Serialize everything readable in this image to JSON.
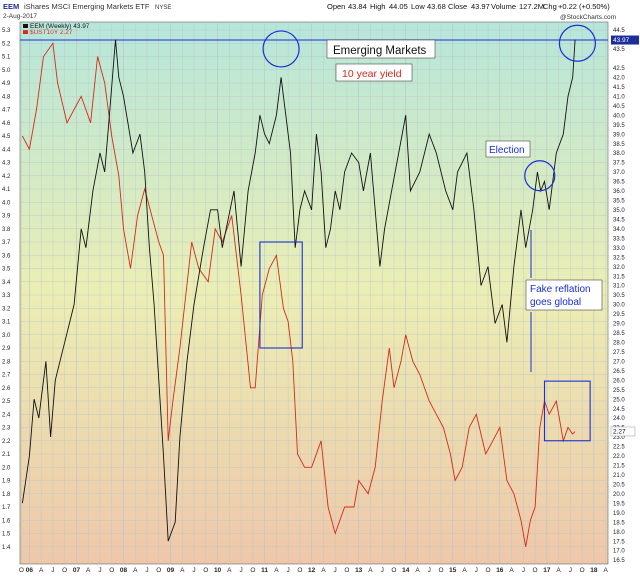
{
  "header": {
    "symbol": "EEM",
    "description": "iShares MSCI Emerging Markets ETF",
    "exchange": "NYSE",
    "date": "2-Aug-2017",
    "open_label": "Open",
    "open_value": "43.84",
    "high_label": "High",
    "high_value": "44.05",
    "low_label": "Low",
    "low_value": "43.68",
    "close_label": "Close",
    "close_value": "43.97",
    "volume_label": "Volume",
    "volume_value": "127.2M",
    "chg_label": "Chg",
    "chg_value": "+0.22 (+0.50%)",
    "watermark": "@StockCharts.com"
  },
  "legend": {
    "eem": "EEM (Weekly) 43.97",
    "ust": "$UST10Y 2.27"
  },
  "annotations": {
    "title": "Emerging Markets",
    "yield": "10 year yield",
    "election": "Election",
    "reflation_line1": "Fake reflation",
    "reflation_line2": "goes global"
  },
  "colors": {
    "eem": "#111111",
    "ust": "#d42a1a",
    "annotation": "#1a2fd6",
    "grid": "#b9c3c9",
    "bg_top": "#b6e6da",
    "bg_mid": "#ebeeb4",
    "bg_bottom": "#eec7aa"
  },
  "chart_data": {
    "type": "line",
    "x_range": [
      2005.8,
      2018.3
    ],
    "ylim_left": [
      1.3,
      5.3
    ],
    "ylim_right": [
      16.5,
      44.5
    ],
    "left_ticks": [
      "5.3",
      "5.2",
      "5.1",
      "5.0",
      "4.9",
      "4.8",
      "4.7",
      "4.6",
      "4.5",
      "4.4",
      "4.3",
      "4.2",
      "4.1",
      "4.0",
      "3.9",
      "3.8",
      "3.7",
      "3.6",
      "3.5",
      "3.4",
      "3.3",
      "3.2",
      "3.1",
      "3.0",
      "2.9",
      "2.8",
      "2.7",
      "2.6",
      "2.5",
      "2.4",
      "2.3",
      "2.2",
      "2.1",
      "2.0",
      "1.9",
      "1.8",
      "1.7",
      "1.6",
      "1.5",
      "1.4"
    ],
    "right_ticks": [
      "44.5",
      "44.0",
      "43.5",
      "42.5",
      "42.0",
      "41.5",
      "41.0",
      "40.5",
      "40.0",
      "39.5",
      "39.0",
      "38.5",
      "38.0",
      "37.5",
      "37.0",
      "36.5",
      "36.0",
      "35.5",
      "35.0",
      "34.5",
      "34.0",
      "33.5",
      "33.0",
      "32.5",
      "32.0",
      "31.5",
      "31.0",
      "30.5",
      "30.0",
      "29.5",
      "29.0",
      "28.5",
      "28.0",
      "27.5",
      "27.0",
      "26.5",
      "26.0",
      "25.5",
      "25.0",
      "24.5",
      "24.0",
      "23.5",
      "23.0",
      "22.5",
      "22.0",
      "21.5",
      "21.0",
      "20.5",
      "20.0",
      "19.5",
      "19.0",
      "18.5",
      "18.0",
      "17.5",
      "17.0",
      "16.5"
    ],
    "x_ticks": [
      {
        "t": 2005.83,
        "label": "O"
      },
      {
        "t": 2006.0,
        "label": "06"
      },
      {
        "t": 2006.25,
        "label": "A"
      },
      {
        "t": 2006.5,
        "label": "J"
      },
      {
        "t": 2006.75,
        "label": "O"
      },
      {
        "t": 2007.0,
        "label": "07"
      },
      {
        "t": 2007.25,
        "label": "A"
      },
      {
        "t": 2007.5,
        "label": "J"
      },
      {
        "t": 2007.75,
        "label": "O"
      },
      {
        "t": 2008.0,
        "label": "08"
      },
      {
        "t": 2008.25,
        "label": "A"
      },
      {
        "t": 2008.5,
        "label": "J"
      },
      {
        "t": 2008.75,
        "label": "O"
      },
      {
        "t": 2009.0,
        "label": "09"
      },
      {
        "t": 2009.25,
        "label": "A"
      },
      {
        "t": 2009.5,
        "label": "J"
      },
      {
        "t": 2009.75,
        "label": "O"
      },
      {
        "t": 2010.0,
        "label": "10"
      },
      {
        "t": 2010.25,
        "label": "A"
      },
      {
        "t": 2010.5,
        "label": "J"
      },
      {
        "t": 2010.75,
        "label": "O"
      },
      {
        "t": 2011.0,
        "label": "11"
      },
      {
        "t": 2011.25,
        "label": "A"
      },
      {
        "t": 2011.5,
        "label": "J"
      },
      {
        "t": 2011.75,
        "label": "O"
      },
      {
        "t": 2012.0,
        "label": "12"
      },
      {
        "t": 2012.25,
        "label": "A"
      },
      {
        "t": 2012.5,
        "label": "J"
      },
      {
        "t": 2012.75,
        "label": "O"
      },
      {
        "t": 2013.0,
        "label": "13"
      },
      {
        "t": 2013.25,
        "label": "A"
      },
      {
        "t": 2013.5,
        "label": "J"
      },
      {
        "t": 2013.75,
        "label": "O"
      },
      {
        "t": 2014.0,
        "label": "14"
      },
      {
        "t": 2014.25,
        "label": "A"
      },
      {
        "t": 2014.5,
        "label": "J"
      },
      {
        "t": 2014.75,
        "label": "O"
      },
      {
        "t": 2015.0,
        "label": "15"
      },
      {
        "t": 2015.25,
        "label": "A"
      },
      {
        "t": 2015.5,
        "label": "J"
      },
      {
        "t": 2015.75,
        "label": "O"
      },
      {
        "t": 2016.0,
        "label": "16"
      },
      {
        "t": 2016.25,
        "label": "A"
      },
      {
        "t": 2016.5,
        "label": "J"
      },
      {
        "t": 2016.75,
        "label": "O"
      },
      {
        "t": 2017.0,
        "label": "17"
      },
      {
        "t": 2017.25,
        "label": "A"
      },
      {
        "t": 2017.5,
        "label": "J"
      },
      {
        "t": 2017.75,
        "label": "O"
      },
      {
        "t": 2018.0,
        "label": "18"
      },
      {
        "t": 2018.25,
        "label": "A"
      }
    ],
    "series": [
      {
        "name": "EEM (Weekly)",
        "axis": "right",
        "t": [
          2005.85,
          2006.0,
          2006.1,
          2006.2,
          2006.35,
          2006.45,
          2006.55,
          2006.75,
          2006.95,
          2007.1,
          2007.2,
          2007.35,
          2007.5,
          2007.6,
          2007.7,
          2007.83,
          2007.9,
          2008.0,
          2008.2,
          2008.35,
          2008.45,
          2008.55,
          2008.65,
          2008.75,
          2008.85,
          2008.95,
          2009.1,
          2009.2,
          2009.35,
          2009.5,
          2009.7,
          2009.85,
          2010.0,
          2010.1,
          2010.35,
          2010.5,
          2010.65,
          2010.8,
          2010.9,
          2011.0,
          2011.1,
          2011.25,
          2011.35,
          2011.45,
          2011.55,
          2011.65,
          2011.75,
          2011.85,
          2012.0,
          2012.1,
          2012.2,
          2012.3,
          2012.4,
          2012.5,
          2012.6,
          2012.7,
          2012.85,
          2013.0,
          2013.1,
          2013.25,
          2013.45,
          2013.55,
          2013.7,
          2013.85,
          2014.0,
          2014.1,
          2014.3,
          2014.5,
          2014.65,
          2014.85,
          2015.0,
          2015.1,
          2015.3,
          2015.45,
          2015.6,
          2015.75,
          2015.9,
          2016.05,
          2016.15,
          2016.3,
          2016.45,
          2016.55,
          2016.7,
          2016.8,
          2016.87,
          2016.95,
          2017.05,
          2017.2,
          2017.35,
          2017.45,
          2017.55,
          2017.6
        ],
        "values": [
          19.5,
          22,
          25,
          24,
          27,
          23,
          26,
          28,
          30,
          34,
          33,
          36,
          38,
          37,
          40,
          44,
          42,
          41,
          38,
          39,
          37,
          33,
          30,
          26,
          22,
          17.5,
          18.5,
          23,
          27,
          30,
          33,
          35,
          35,
          33,
          36,
          32,
          36,
          38,
          40,
          39,
          38.5,
          40,
          42,
          40,
          38,
          33,
          35,
          36,
          35,
          39,
          37,
          33,
          34,
          36,
          35,
          37,
          38,
          37.5,
          36,
          38,
          32,
          34,
          36,
          38,
          40,
          36,
          37,
          39,
          38,
          36,
          35,
          37,
          38,
          35,
          31,
          32,
          29,
          30,
          28,
          32,
          35,
          33,
          35,
          37,
          36,
          36.5,
          35,
          38,
          39,
          41,
          42,
          44
        ]
      },
      {
        "name": "$UST10Y",
        "axis": "left",
        "t": [
          2005.85,
          2006.0,
          2006.15,
          2006.3,
          2006.5,
          2006.6,
          2006.8,
          2006.95,
          2007.1,
          2007.3,
          2007.45,
          2007.6,
          2007.75,
          2007.9,
          2008.0,
          2008.15,
          2008.3,
          2008.45,
          2008.6,
          2008.75,
          2008.85,
          2008.95,
          2009.05,
          2009.2,
          2009.45,
          2009.6,
          2009.8,
          2009.95,
          2010.1,
          2010.3,
          2010.5,
          2010.7,
          2010.8,
          2010.95,
          2011.1,
          2011.25,
          2011.4,
          2011.5,
          2011.6,
          2011.7,
          2011.85,
          2012.0,
          2012.2,
          2012.35,
          2012.5,
          2012.7,
          2012.9,
          2013.0,
          2013.2,
          2013.35,
          2013.5,
          2013.65,
          2013.75,
          2013.9,
          2014.0,
          2014.15,
          2014.3,
          2014.5,
          2014.65,
          2014.8,
          2014.95,
          2015.05,
          2015.2,
          2015.35,
          2015.5,
          2015.7,
          2015.85,
          2016.0,
          2016.15,
          2016.3,
          2016.45,
          2016.55,
          2016.65,
          2016.75,
          2016.85,
          2016.95,
          2017.05,
          2017.2,
          2017.35,
          2017.45,
          2017.55,
          2017.6
        ],
        "values": [
          4.5,
          4.4,
          4.7,
          5.1,
          5.2,
          4.9,
          4.6,
          4.7,
          4.8,
          4.6,
          5.1,
          4.9,
          4.5,
          4.2,
          3.8,
          3.5,
          3.9,
          4.1,
          3.9,
          3.7,
          3.6,
          2.2,
          2.5,
          2.9,
          3.7,
          3.5,
          3.4,
          3.8,
          3.7,
          3.9,
          3.3,
          2.6,
          2.6,
          3.3,
          3.5,
          3.6,
          3.2,
          3.1,
          2.8,
          2.1,
          2.0,
          2.0,
          2.2,
          1.7,
          1.5,
          1.7,
          1.7,
          1.9,
          1.8,
          2.0,
          2.5,
          2.9,
          2.6,
          2.8,
          3.0,
          2.8,
          2.7,
          2.5,
          2.4,
          2.3,
          2.1,
          1.9,
          2.0,
          2.3,
          2.4,
          2.1,
          2.2,
          2.3,
          1.9,
          1.8,
          1.6,
          1.4,
          1.6,
          1.7,
          2.3,
          2.5,
          2.4,
          2.5,
          2.2,
          2.3,
          2.25,
          2.27
        ]
      }
    ],
    "annotation_boxes": [
      {
        "t0": 2010.9,
        "t1": 2011.8,
        "y0": 2.9,
        "y1": 3.7,
        "axis": "left"
      },
      {
        "t0": 2016.95,
        "t1": 2017.92,
        "y0": 2.2,
        "y1": 2.65,
        "axis": "left"
      }
    ],
    "annotation_circles": [
      {
        "t": 2011.35,
        "y": 43.5,
        "axis": "right"
      },
      {
        "t": 2016.85,
        "y": 36.8,
        "axis": "right"
      },
      {
        "t": 2017.65,
        "y": 43.8,
        "axis": "right"
      }
    ],
    "hline_right": 43.97,
    "grid": true
  }
}
